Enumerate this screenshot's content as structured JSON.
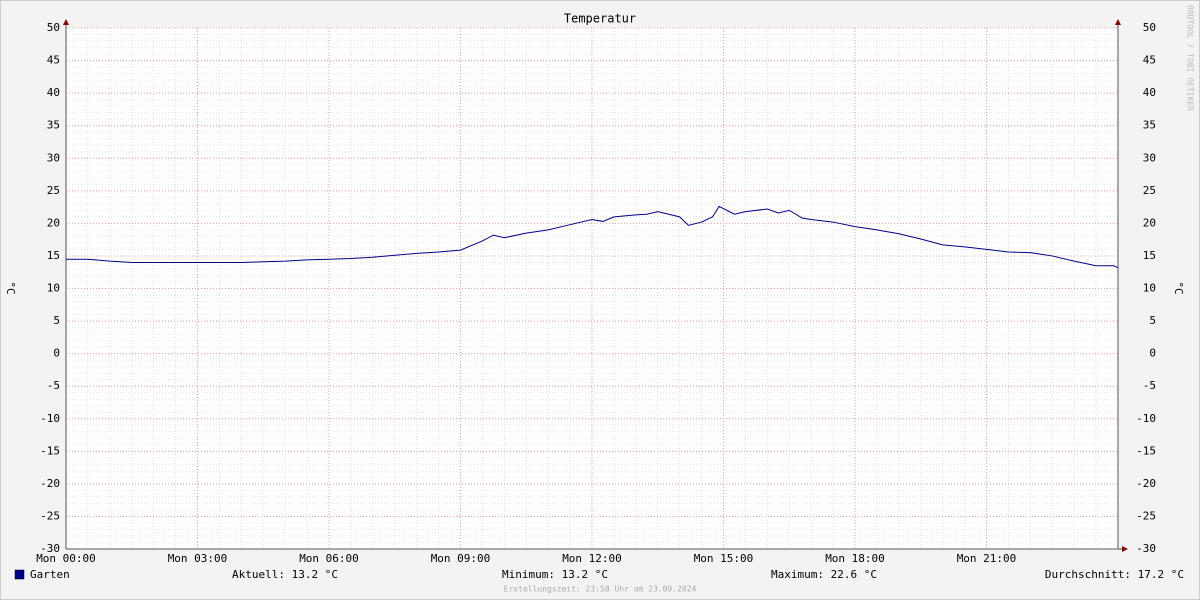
{
  "chart_data": {
    "type": "line",
    "title": "Temperatur",
    "ylabel": "°C",
    "watermark": "RRDTOOL / TOBI OETIKER",
    "footer": "Erstellungszeit: 23:58 Uhr am 23.09.2024",
    "xlim": [
      0,
      24
    ],
    "xticks": [
      {
        "value": 0,
        "label": "Mon 00:00"
      },
      {
        "value": 3,
        "label": "Mon 03:00"
      },
      {
        "value": 6,
        "label": "Mon 06:00"
      },
      {
        "value": 9,
        "label": "Mon 09:00"
      },
      {
        "value": 12,
        "label": "Mon 12:00"
      },
      {
        "value": 15,
        "label": "Mon 15:00"
      },
      {
        "value": 18,
        "label": "Mon 18:00"
      },
      {
        "value": 21,
        "label": "Mon 21:00"
      }
    ],
    "ylim": [
      -30,
      50
    ],
    "yticks": [
      -30,
      -25,
      -20,
      -15,
      -10,
      -5,
      0,
      5,
      10,
      15,
      20,
      25,
      30,
      35,
      40,
      45,
      50
    ],
    "grid": true,
    "x": [
      0,
      0.5,
      1,
      1.5,
      2,
      3,
      4,
      4.5,
      5,
      5.5,
      6,
      6.5,
      7,
      7.5,
      8,
      8.5,
      9,
      9.5,
      9.75,
      10,
      10.5,
      11,
      11.5,
      12,
      12.25,
      12.5,
      13,
      13.25,
      13.5,
      14,
      14.2,
      14.5,
      14.75,
      14.9,
      15.25,
      15.5,
      16,
      16.25,
      16.5,
      16.8,
      17,
      17.5,
      18,
      18.5,
      19,
      19.5,
      20,
      20.5,
      21,
      21.5,
      22,
      22.5,
      23,
      23.5,
      23.9,
      24
    ],
    "series": [
      {
        "name": "Garten",
        "color": "#00008b",
        "values": [
          14.5,
          14.5,
          14.2,
          14.0,
          14.0,
          14.0,
          14.0,
          14.1,
          14.2,
          14.4,
          14.5,
          14.6,
          14.8,
          15.1,
          15.4,
          15.6,
          15.9,
          17.3,
          18.2,
          17.8,
          18.5,
          19.0,
          19.8,
          20.6,
          20.3,
          21.0,
          21.3,
          21.4,
          21.8,
          21.0,
          19.7,
          20.2,
          21.0,
          22.6,
          21.4,
          21.8,
          22.2,
          21.6,
          22.0,
          20.8,
          20.6,
          20.2,
          19.5,
          19.0,
          18.4,
          17.6,
          16.7,
          16.4,
          16.0,
          15.6,
          15.5,
          15.0,
          14.2,
          13.5,
          13.5,
          13.2
        ]
      }
    ],
    "stats": [
      "Aktuell: 13.2 °C",
      "Minimum: 13.2 °C",
      "Maximum: 22.6 °C",
      "Durchschnitt: 17.2 °C"
    ]
  }
}
